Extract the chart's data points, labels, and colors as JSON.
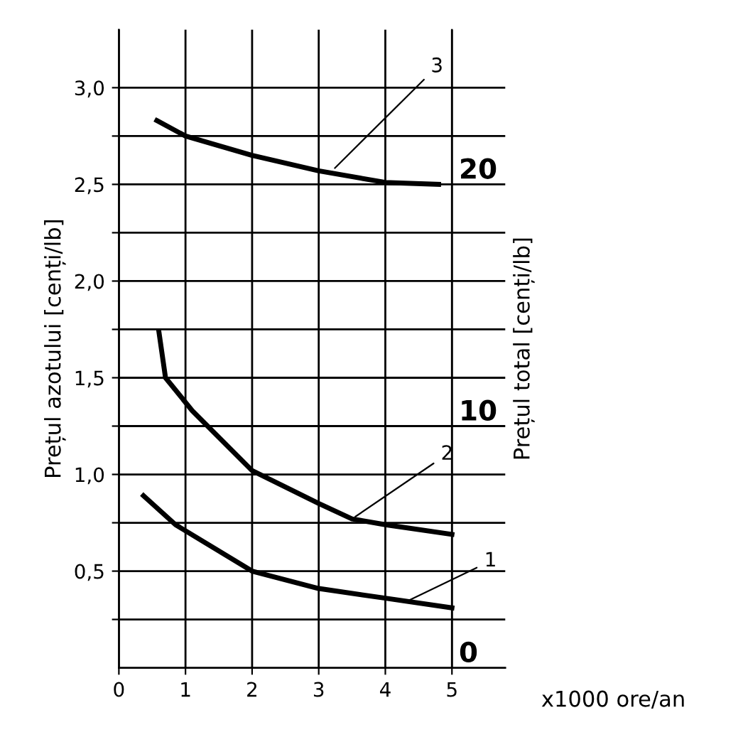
{
  "chart_data": {
    "type": "line",
    "xlabel": "x1000 ore/an",
    "ylabel": "Prețul azotului [cenți/lb]",
    "y2label": "Prețul total [cenți/lb]",
    "series": [
      {
        "color": "#000000",
        "x": [
          0.37,
          0.85,
          2,
          3,
          4,
          5
        ],
        "values": [
          0.89,
          0.74,
          0.5,
          0.41,
          0.36,
          0.31
        ]
      },
      {
        "color": "#000000",
        "x": [
          0.6,
          0.7,
          1.1,
          2,
          3,
          3.5,
          4,
          5
        ],
        "values": [
          1.74,
          1.5,
          1.33,
          1.02,
          0.85,
          0.77,
          0.74,
          0.69
        ]
      },
      {
        "color": "#000000",
        "x": [
          0.57,
          1,
          2,
          3,
          4,
          4.8
        ],
        "values": [
          2.83,
          2.75,
          2.65,
          2.57,
          2.51,
          2.5
        ]
      }
    ],
    "annotations": [
      {
        "text": "1",
        "x": 4.3,
        "y": 0.34
      },
      {
        "text": "2",
        "x": 3.5,
        "y": 0.77
      },
      {
        "text": "3",
        "x": 3.2,
        "y": 2.57
      }
    ],
    "xlim": [
      0,
      5.8
    ],
    "ylim": [
      0,
      3.3
    ],
    "xticks": [
      0,
      1,
      2,
      3,
      4,
      5
    ],
    "yticks": [
      {
        "value": 0.25,
        "label": null
      },
      {
        "value": 0.5,
        "label": "0,5"
      },
      {
        "value": 0.75,
        "label": null
      },
      {
        "value": 1.0,
        "label": "1,0"
      },
      {
        "value": 1.25,
        "label": null
      },
      {
        "value": 1.5,
        "label": "1,5"
      },
      {
        "value": 1.75,
        "label": null
      },
      {
        "value": 2.0,
        "label": "2,0"
      },
      {
        "value": 2.25,
        "label": null
      },
      {
        "value": 2.5,
        "label": "2,5"
      },
      {
        "value": 2.75,
        "label": null
      },
      {
        "value": 3.0,
        "label": "3,0"
      }
    ],
    "y2lim": [
      0,
      26.4
    ],
    "y2ticks": [
      0,
      10,
      20
    ],
    "grid": true,
    "line_style": "solid",
    "marker": "none"
  }
}
